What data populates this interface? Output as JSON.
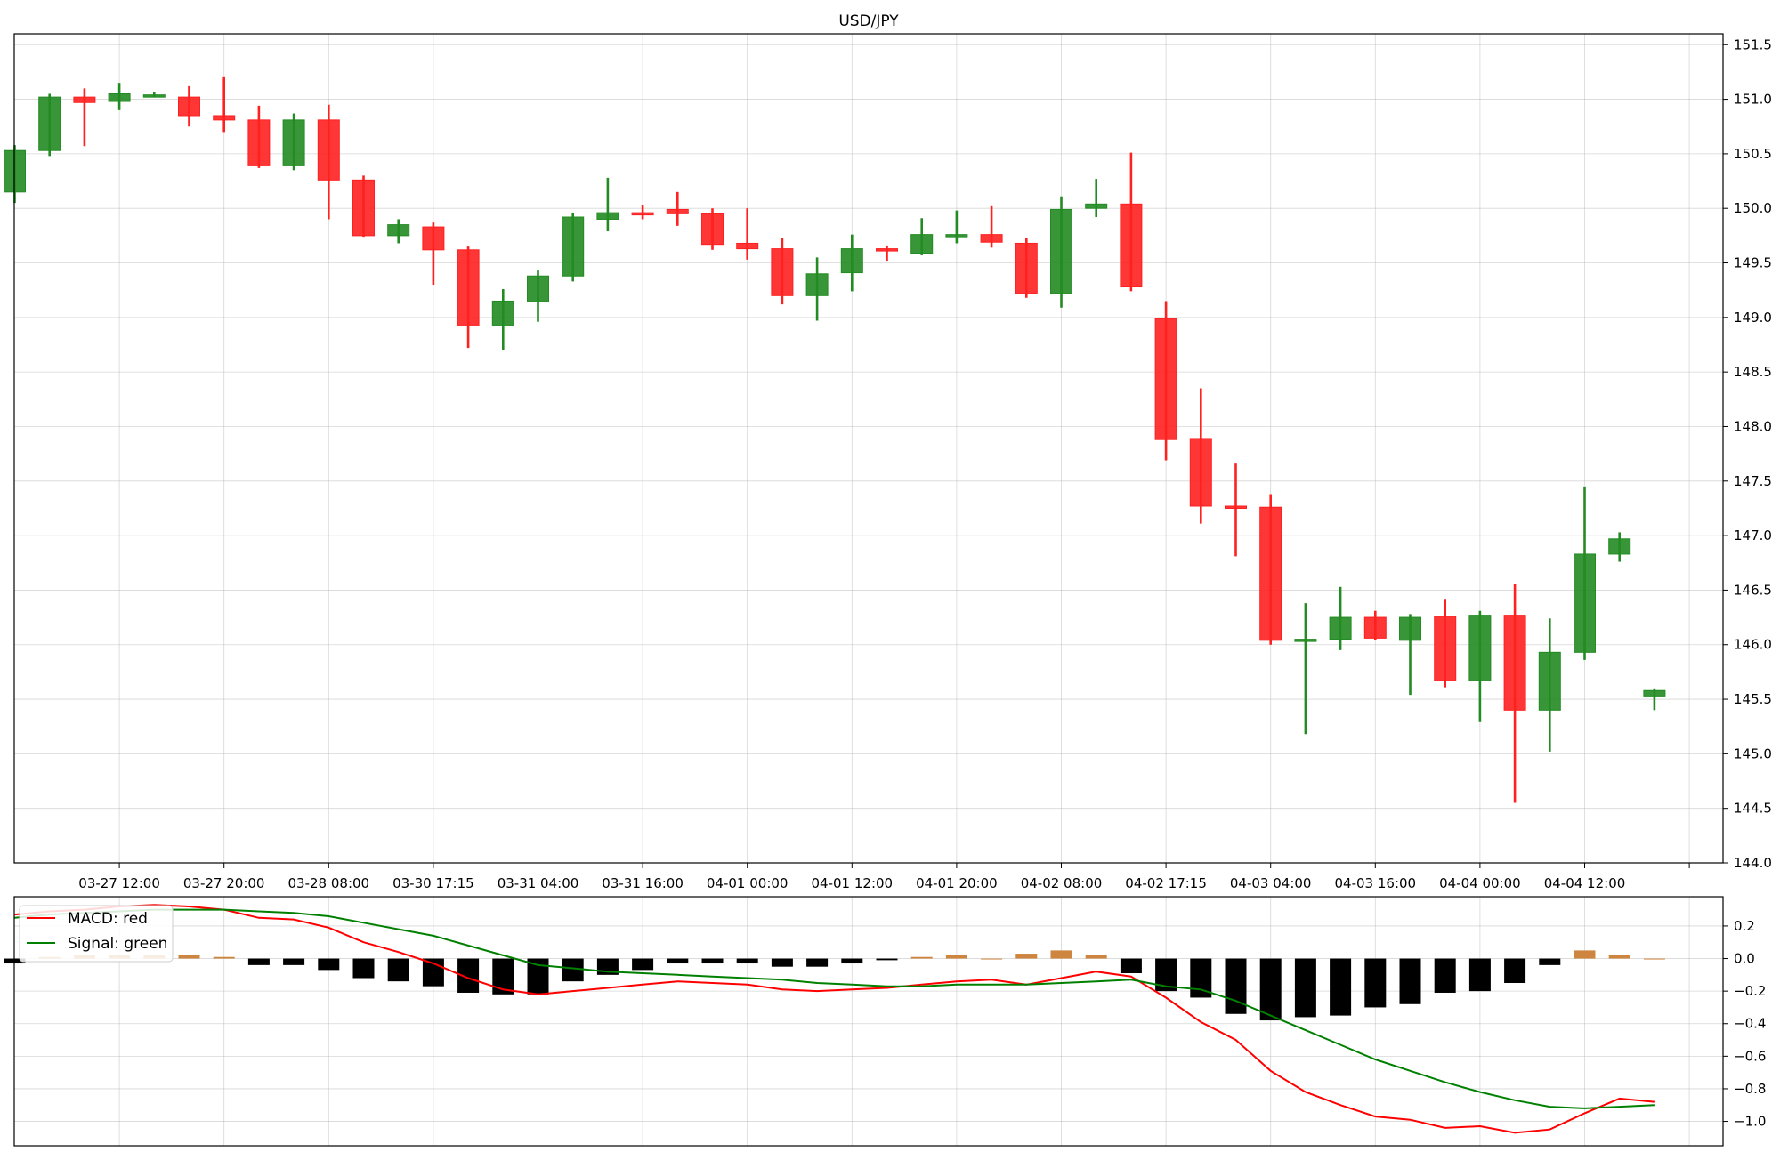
{
  "chart_data": [
    {
      "type": "candlestick",
      "title": "USD/JPY",
      "ylim": [
        144.0,
        151.6
      ],
      "yticks": [
        "144.0",
        "144.5",
        "145.0",
        "145.5",
        "146.0",
        "146.5",
        "147.0",
        "147.5",
        "148.0",
        "148.5",
        "149.0",
        "149.5",
        "150.0",
        "150.5",
        "151.0",
        "151.5"
      ],
      "xtick_labels": [
        {
          "bar": 3,
          "label": "03-27 12:00"
        },
        {
          "bar": 6,
          "label": "03-27 20:00"
        },
        {
          "bar": 9,
          "label": "03-28 08:00"
        },
        {
          "bar": 12,
          "label": "03-30 17:15"
        },
        {
          "bar": 15,
          "label": "03-31 04:00"
        },
        {
          "bar": 18,
          "label": "03-31 16:00"
        },
        {
          "bar": 21,
          "label": "04-01 00:00"
        },
        {
          "bar": 24,
          "label": "04-01 12:00"
        },
        {
          "bar": 27,
          "label": "04-01 20:00"
        },
        {
          "bar": 30,
          "label": "04-02 08:00"
        },
        {
          "bar": 33,
          "label": "04-02 17:15"
        },
        {
          "bar": 36,
          "label": "04-03 04:00"
        },
        {
          "bar": 39,
          "label": "04-03 16:00"
        },
        {
          "bar": 42,
          "label": "04-04 00:00"
        },
        {
          "bar": 45,
          "label": "04-04 12:00"
        }
      ],
      "up_color": "#228B22",
      "down_color": "#FF2020",
      "candles": [
        {
          "o": 150.15,
          "h": 150.58,
          "l": 150.05,
          "c": 150.53
        },
        {
          "o": 150.53,
          "h": 151.05,
          "l": 150.48,
          "c": 151.02
        },
        {
          "o": 151.02,
          "h": 151.1,
          "l": 150.57,
          "c": 150.97
        },
        {
          "o": 150.98,
          "h": 151.15,
          "l": 150.9,
          "c": 151.05
        },
        {
          "o": 151.03,
          "h": 151.07,
          "l": 151.02,
          "c": 151.04
        },
        {
          "o": 151.02,
          "h": 151.12,
          "l": 150.75,
          "c": 150.85
        },
        {
          "o": 150.85,
          "h": 151.21,
          "l": 150.7,
          "c": 150.81
        },
        {
          "o": 150.81,
          "h": 150.94,
          "l": 150.37,
          "c": 150.39
        },
        {
          "o": 150.39,
          "h": 150.87,
          "l": 150.35,
          "c": 150.81
        },
        {
          "o": 150.81,
          "h": 150.95,
          "l": 149.9,
          "c": 150.26
        },
        {
          "o": 150.26,
          "h": 150.3,
          "l": 149.74,
          "c": 149.75
        },
        {
          "o": 149.75,
          "h": 149.9,
          "l": 149.68,
          "c": 149.85
        },
        {
          "o": 149.83,
          "h": 149.87,
          "l": 149.3,
          "c": 149.62
        },
        {
          "o": 149.62,
          "h": 149.65,
          "l": 148.72,
          "c": 148.93
        },
        {
          "o": 148.93,
          "h": 149.26,
          "l": 148.7,
          "c": 149.15
        },
        {
          "o": 149.15,
          "h": 149.43,
          "l": 148.96,
          "c": 149.38
        },
        {
          "o": 149.38,
          "h": 149.96,
          "l": 149.33,
          "c": 149.92
        },
        {
          "o": 149.9,
          "h": 150.28,
          "l": 149.79,
          "c": 149.96
        },
        {
          "o": 149.96,
          "h": 150.03,
          "l": 149.9,
          "c": 149.95
        },
        {
          "o": 149.99,
          "h": 150.15,
          "l": 149.84,
          "c": 149.95
        },
        {
          "o": 149.95,
          "h": 150.0,
          "l": 149.62,
          "c": 149.67
        },
        {
          "o": 149.68,
          "h": 150.0,
          "l": 149.53,
          "c": 149.63
        },
        {
          "o": 149.63,
          "h": 149.73,
          "l": 149.12,
          "c": 149.2
        },
        {
          "o": 149.2,
          "h": 149.55,
          "l": 148.97,
          "c": 149.4
        },
        {
          "o": 149.41,
          "h": 149.76,
          "l": 149.24,
          "c": 149.63
        },
        {
          "o": 149.63,
          "h": 149.66,
          "l": 149.52,
          "c": 149.62
        },
        {
          "o": 149.59,
          "h": 149.91,
          "l": 149.57,
          "c": 149.76
        },
        {
          "o": 149.76,
          "h": 149.98,
          "l": 149.68,
          "c": 149.76
        },
        {
          "o": 149.76,
          "h": 150.02,
          "l": 149.64,
          "c": 149.69
        },
        {
          "o": 149.68,
          "h": 149.73,
          "l": 149.18,
          "c": 149.22
        },
        {
          "o": 149.22,
          "h": 150.11,
          "l": 149.09,
          "c": 149.99
        },
        {
          "o": 150.0,
          "h": 150.27,
          "l": 149.92,
          "c": 150.04
        },
        {
          "o": 150.04,
          "h": 150.51,
          "l": 149.24,
          "c": 149.28
        },
        {
          "o": 148.99,
          "h": 149.15,
          "l": 147.69,
          "c": 147.88
        },
        {
          "o": 147.89,
          "h": 148.35,
          "l": 147.11,
          "c": 147.27
        },
        {
          "o": 147.27,
          "h": 147.66,
          "l": 146.81,
          "c": 147.26
        },
        {
          "o": 147.26,
          "h": 147.38,
          "l": 146.0,
          "c": 146.04
        },
        {
          "o": 146.04,
          "h": 146.38,
          "l": 145.18,
          "c": 146.05
        },
        {
          "o": 146.05,
          "h": 146.53,
          "l": 145.95,
          "c": 146.25
        },
        {
          "o": 146.25,
          "h": 146.31,
          "l": 146.04,
          "c": 146.06
        },
        {
          "o": 146.04,
          "h": 146.28,
          "l": 145.54,
          "c": 146.25
        },
        {
          "o": 146.26,
          "h": 146.42,
          "l": 145.61,
          "c": 145.67
        },
        {
          "o": 145.67,
          "h": 146.31,
          "l": 145.29,
          "c": 146.27
        },
        {
          "o": 146.27,
          "h": 146.56,
          "l": 144.55,
          "c": 145.4
        },
        {
          "o": 145.4,
          "h": 146.24,
          "l": 145.02,
          "c": 145.93
        },
        {
          "o": 145.93,
          "h": 147.45,
          "l": 145.86,
          "c": 146.83
        },
        {
          "o": 146.83,
          "h": 147.03,
          "l": 146.76,
          "c": 146.97
        },
        {
          "o": 145.53,
          "h": 145.6,
          "l": 145.4,
          "c": 145.58
        }
      ]
    },
    {
      "type": "line+bar",
      "ylim": [
        -1.15,
        0.38
      ],
      "yticks": [
        "0.2",
        "0.0",
        "−0.2",
        "−0.4",
        "−0.6",
        "−0.8",
        "−1.0"
      ],
      "legend": {
        "position": "upper-left"
      },
      "series": [
        {
          "name": "MACD: red",
          "color": "#FF0000",
          "values": [
            0.27,
            0.29,
            0.3,
            0.32,
            0.33,
            0.32,
            0.3,
            0.25,
            0.24,
            0.19,
            0.1,
            0.04,
            -0.03,
            -0.12,
            -0.19,
            -0.22,
            -0.2,
            -0.18,
            -0.16,
            -0.14,
            -0.15,
            -0.16,
            -0.19,
            -0.2,
            -0.19,
            -0.18,
            -0.16,
            -0.14,
            -0.13,
            -0.16,
            -0.12,
            -0.08,
            -0.11,
            -0.24,
            -0.39,
            -0.5,
            -0.69,
            -0.82,
            -0.9,
            -0.97,
            -0.99,
            -1.04,
            -1.03,
            -1.07,
            -1.05,
            -0.95,
            -0.86,
            -0.88
          ]
        },
        {
          "name": "Signal: green",
          "color": "#008000",
          "values": [
            0.25,
            0.27,
            0.28,
            0.29,
            0.3,
            0.3,
            0.3,
            0.29,
            0.28,
            0.26,
            0.22,
            0.18,
            0.14,
            0.08,
            0.02,
            -0.04,
            -0.06,
            -0.08,
            -0.09,
            -0.1,
            -0.11,
            -0.12,
            -0.13,
            -0.15,
            -0.16,
            -0.17,
            -0.17,
            -0.16,
            -0.16,
            -0.16,
            -0.15,
            -0.14,
            -0.13,
            -0.17,
            -0.19,
            -0.26,
            -0.35,
            -0.44,
            -0.53,
            -0.62,
            -0.69,
            -0.76,
            -0.82,
            -0.87,
            -0.91,
            -0.92,
            -0.91,
            -0.9
          ]
        }
      ],
      "histogram": {
        "neg_color": "#000000",
        "pos_color": "#CD853F",
        "values": [
          -0.03,
          0.01,
          0.02,
          0.02,
          0.02,
          0.02,
          0.01,
          -0.04,
          -0.04,
          -0.07,
          -0.12,
          -0.14,
          -0.17,
          -0.21,
          -0.22,
          -0.22,
          -0.14,
          -0.1,
          -0.07,
          -0.03,
          -0.03,
          -0.03,
          -0.05,
          -0.05,
          -0.03,
          -0.01,
          0.01,
          0.02,
          0.0,
          0.03,
          0.05,
          0.02,
          -0.09,
          -0.2,
          -0.24,
          -0.34,
          -0.38,
          -0.36,
          -0.35,
          -0.3,
          -0.28,
          -0.21,
          -0.2,
          -0.15,
          -0.04,
          0.05,
          0.02,
          0.0
        ]
      }
    }
  ]
}
